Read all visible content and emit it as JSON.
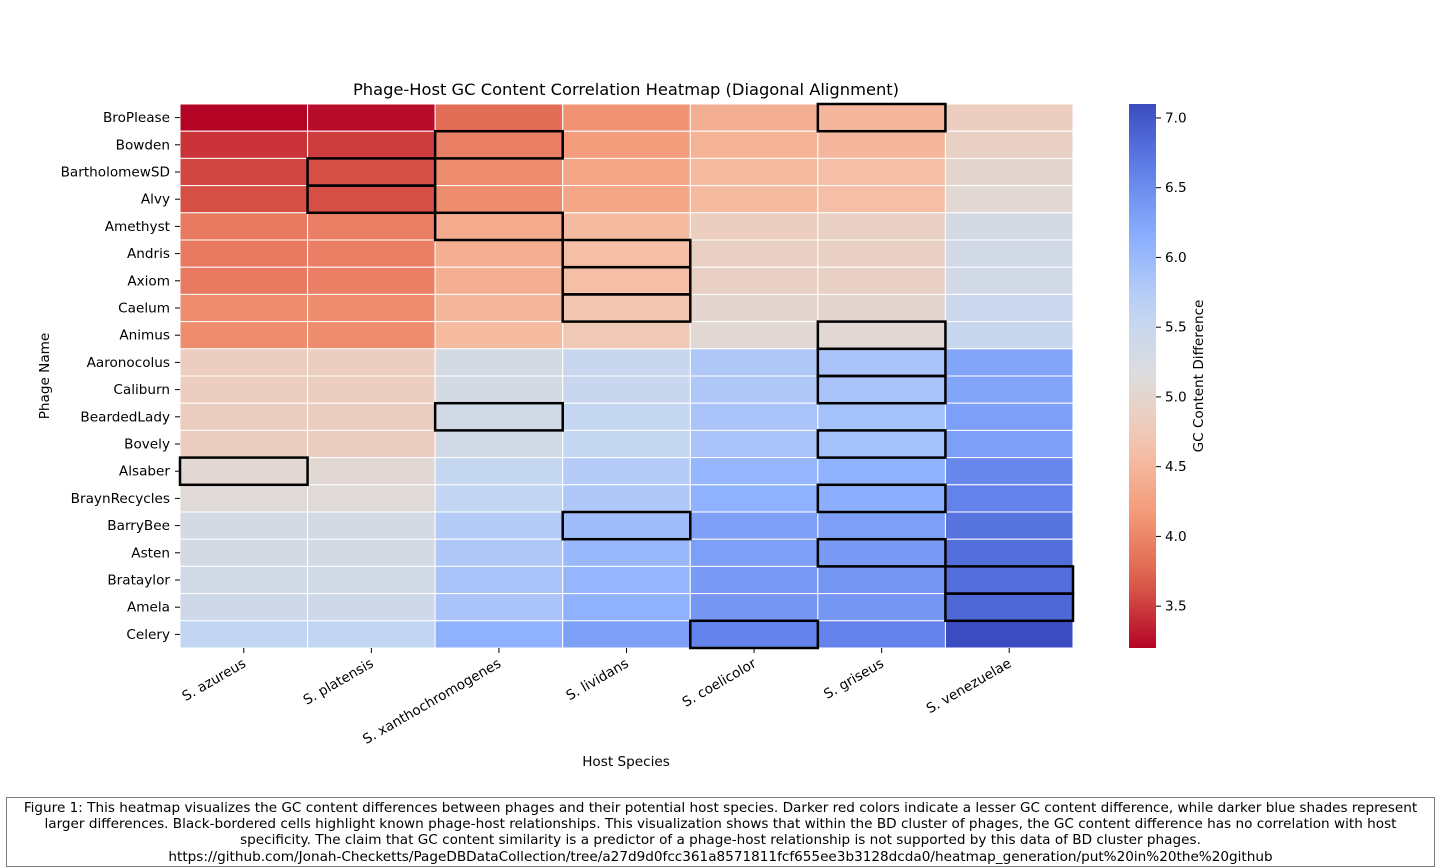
{
  "chart_data": {
    "type": "heatmap",
    "title": "Phage-Host GC Content Correlation Heatmap (Diagonal Alignment)",
    "xlabel": "Host Species",
    "ylabel": "Phage Name",
    "colorbar_label": "GC Content Difference",
    "colormap": "coolwarm_r",
    "vmin": 3.2,
    "vmax": 7.1,
    "colorbar_ticks": [
      "3.5",
      "4.0",
      "4.5",
      "5.0",
      "5.5",
      "6.0",
      "6.5",
      "7.0"
    ],
    "colorbar_tick_values": [
      3.5,
      4.0,
      4.5,
      5.0,
      5.5,
      6.0,
      6.5,
      7.0
    ],
    "x": [
      "S. azureus",
      "S. platensis",
      "S. xanthochromogenes",
      "S. lividans",
      "S. coelicolor",
      "S. griseus",
      "S. venezuelae"
    ],
    "y": [
      "BroPlease",
      "Bowden",
      "BartholomewSD",
      "Alvy",
      "Amethyst",
      "Andris",
      "Axiom",
      "Caelum",
      "Animus",
      "Aaronocolus",
      "Caliburn",
      "BeardedLady",
      "Bovely",
      "Alsaber",
      "BraynRecycles",
      "BarryBee",
      "Asten",
      "Brataylor",
      "Amela",
      "Celery"
    ],
    "values": [
      [
        3.2,
        3.25,
        3.8,
        4.1,
        4.4,
        4.5,
        4.85
      ],
      [
        3.45,
        3.5,
        3.95,
        4.2,
        4.45,
        4.5,
        4.9
      ],
      [
        3.55,
        3.6,
        4.05,
        4.3,
        4.55,
        4.6,
        5.0
      ],
      [
        3.6,
        3.6,
        4.05,
        4.3,
        4.55,
        4.6,
        5.05
      ],
      [
        3.9,
        3.95,
        4.35,
        4.55,
        4.85,
        4.9,
        5.3
      ],
      [
        3.9,
        3.95,
        4.4,
        4.6,
        4.9,
        4.9,
        5.35
      ],
      [
        3.9,
        3.95,
        4.4,
        4.6,
        4.9,
        4.9,
        5.35
      ],
      [
        4.05,
        4.05,
        4.5,
        4.7,
        5.0,
        5.0,
        5.45
      ],
      [
        4.05,
        4.05,
        4.55,
        4.75,
        5.05,
        5.05,
        5.5
      ],
      [
        4.85,
        4.85,
        5.3,
        5.5,
        5.8,
        5.85,
        6.25
      ],
      [
        4.85,
        4.85,
        5.3,
        5.5,
        5.8,
        5.85,
        6.25
      ],
      [
        4.85,
        4.85,
        5.35,
        5.55,
        5.85,
        5.9,
        6.3
      ],
      [
        4.85,
        4.85,
        5.35,
        5.55,
        5.85,
        5.9,
        6.3
      ],
      [
        5.05,
        5.05,
        5.55,
        5.75,
        6.05,
        6.1,
        6.55
      ],
      [
        5.1,
        5.1,
        5.6,
        5.8,
        6.1,
        6.15,
        6.6
      ],
      [
        5.3,
        5.3,
        5.75,
        5.95,
        6.3,
        6.3,
        6.75
      ],
      [
        5.3,
        5.3,
        5.8,
        6.0,
        6.3,
        6.35,
        6.8
      ],
      [
        5.35,
        5.35,
        5.85,
        6.05,
        6.35,
        6.4,
        6.8
      ],
      [
        5.4,
        5.4,
        5.85,
        6.1,
        6.4,
        6.4,
        6.85
      ],
      [
        5.6,
        5.6,
        6.1,
        6.3,
        6.6,
        6.6,
        7.1
      ]
    ],
    "highlighted_cells": [
      [
        0,
        5
      ],
      [
        1,
        2
      ],
      [
        2,
        1
      ],
      [
        3,
        1
      ],
      [
        4,
        2
      ],
      [
        5,
        3
      ],
      [
        6,
        3
      ],
      [
        7,
        3
      ],
      [
        8,
        5
      ],
      [
        9,
        5
      ],
      [
        10,
        5
      ],
      [
        11,
        2
      ],
      [
        12,
        5
      ],
      [
        13,
        0
      ],
      [
        14,
        5
      ],
      [
        15,
        3
      ],
      [
        16,
        5
      ],
      [
        17,
        6
      ],
      [
        18,
        6
      ],
      [
        19,
        4
      ]
    ],
    "highlight_color": "#000000",
    "grid": false
  },
  "caption": {
    "lines": [
      "Figure 1: This heatmap visualizes the GC content differences between phages and their potential host species. Darker red colors indicate a lesser GC content difference, while darker blue shades represent",
      "larger differences. Black-bordered cells highlight known phage-host relationships. This visualization shows that within the BD cluster of phages, the GC content difference has no correlation with host",
      "specificity. The claim that GC content similarity is a predictor of a phage-host relationship is not supported by this data of BD cluster phages.",
      "https://github.com/Jonah-Checketts/PageDBDataCollection/tree/a27d9d0fcc361a8571811fcf655ee3b3128dcda0/heatmap_generation/put%20in%20the%20github"
    ]
  }
}
